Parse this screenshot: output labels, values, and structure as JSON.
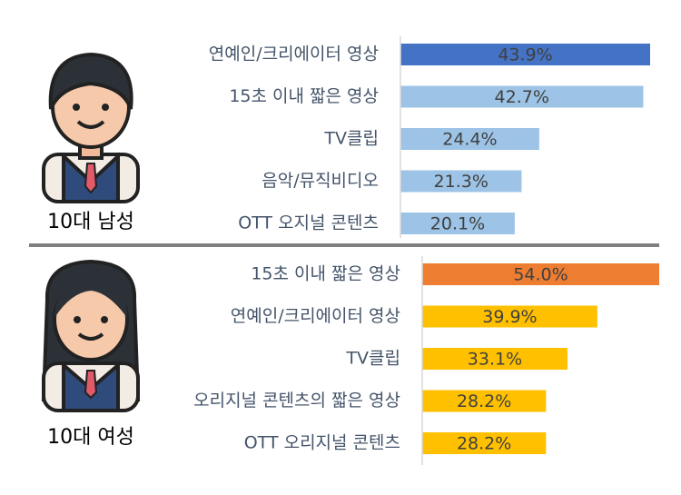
{
  "chart_data": [
    {
      "type": "bar",
      "label": "10대 남성",
      "categories": [
        "연예인/크리에이터 영상",
        "15초 이내 짧은 영상",
        "TV클립",
        "음악/뮤직비디오",
        "OTT 오지널 콘텐츠"
      ],
      "values": [
        43.9,
        42.7,
        24.4,
        21.3,
        20.1
      ],
      "value_labels": [
        "43.9%",
        "42.7%",
        "24.4%",
        "21.3%",
        "20.1%"
      ],
      "colors": [
        "#4472c4",
        "#9dc3e6",
        "#9dc3e6",
        "#9dc3e6",
        "#9dc3e6"
      ]
    },
    {
      "type": "bar",
      "label": "10대 여성",
      "categories": [
        "15초 이내 짧은 영상",
        "연예인/크리에이터 영상",
        "TV클립",
        "오리지널 콘텐츠의 짧은 영상",
        "OTT 오리지널 콘텐츠"
      ],
      "values": [
        54.0,
        39.9,
        33.1,
        28.2,
        28.2
      ],
      "value_labels": [
        "54.0%",
        "39.9%",
        "33.1%",
        "28.2%",
        "28.2%"
      ],
      "colors": [
        "#ed7d31",
        "#ffc000",
        "#ffc000",
        "#ffc000",
        "#ffc000"
      ]
    }
  ]
}
